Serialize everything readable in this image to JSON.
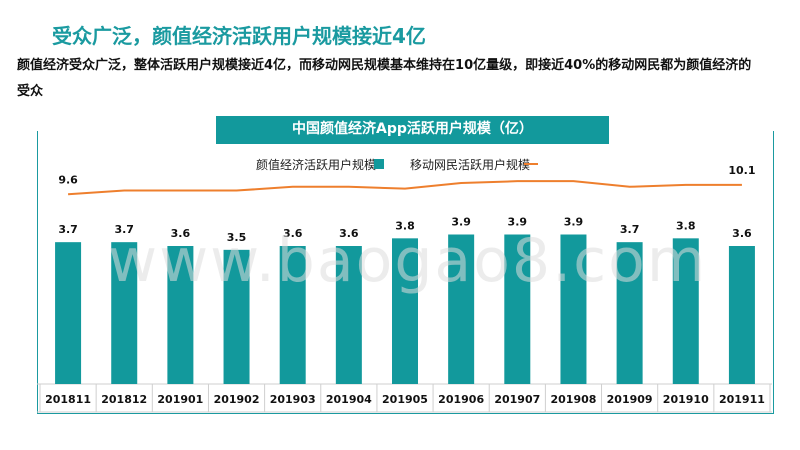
{
  "page": {
    "title": "受众广泛，颜值经济活跃用户规模接近4亿",
    "summary": "颜值经济受众广泛，整体活跃用户规模接近4亿，而移动网民规模基本维持在10亿量级，即接近40%的移动网民都为颜值经济的受众",
    "watermark": "www.baogao8.com"
  },
  "colors": {
    "bar": "#12999c",
    "line": "#ee7f2d",
    "header_bg": "#12999c",
    "title": "#1a9aa0"
  },
  "chart_data": {
    "type": "bar",
    "title": "中国颜值经济App活跃用户规模（亿）",
    "categories": [
      "201811",
      "201812",
      "201901",
      "201902",
      "201903",
      "201904",
      "201905",
      "201906",
      "201907",
      "201908",
      "201909",
      "201910",
      "201911"
    ],
    "series": [
      {
        "name": "颜值经济活跃用户规模",
        "type": "bar",
        "values": [
          3.7,
          3.7,
          3.6,
          3.5,
          3.6,
          3.6,
          3.8,
          3.9,
          3.9,
          3.9,
          3.7,
          3.8,
          3.6
        ],
        "labels": [
          "3.7",
          "3.7",
          "3.6",
          "3.5",
          "3.6",
          "3.6",
          "3.8",
          "3.9",
          "3.9",
          "3.9",
          "3.7",
          "3.8",
          "3.6"
        ]
      },
      {
        "name": "移动网民活跃用户规模",
        "type": "line",
        "values": [
          9.6,
          9.8,
          9.8,
          9.8,
          10.0,
          10.0,
          9.9,
          10.2,
          10.3,
          10.3,
          10.0,
          10.1,
          10.1
        ],
        "labels": [
          "9.6",
          "",
          "",
          "",
          "",
          "",
          "",
          "",
          "",
          "",
          "",
          "",
          "10.1"
        ]
      }
    ],
    "ylim": [
      0,
      4.8
    ],
    "line_ylim": [
      0,
      12.5
    ],
    "legend_position": "top",
    "grid": false
  }
}
